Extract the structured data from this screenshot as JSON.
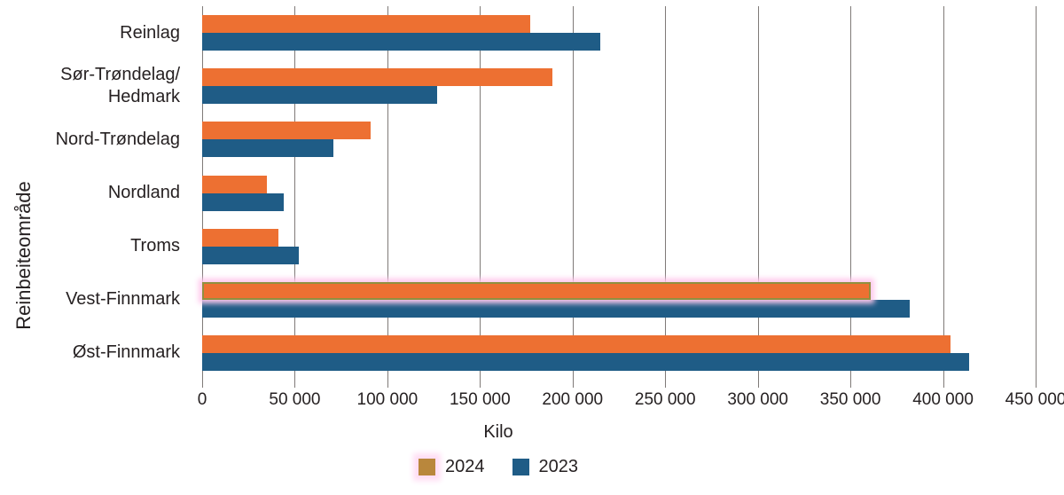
{
  "chart_data": {
    "type": "bar",
    "orientation": "horizontal",
    "title": "",
    "xlabel": "Kilo",
    "ylabel": "Reinbeiteområde",
    "xlim": [
      0,
      450000
    ],
    "grid": "vertical-only",
    "gridline_color": "#7f7a78",
    "x_ticks": [
      0,
      50000,
      100000,
      150000,
      200000,
      250000,
      300000,
      350000,
      400000,
      450000
    ],
    "x_tick_labels": [
      "0",
      "50 000",
      "100 000",
      "150 000",
      "200 000",
      "250 000",
      "300 000",
      "350 000",
      "400 000",
      "450 000"
    ],
    "categories": [
      {
        "id": "reinlag",
        "label_lines": [
          "Reinlag"
        ]
      },
      {
        "id": "sor-trondelag-hedmark",
        "label_lines": [
          "Sør-Trøndelag/",
          "Hedmark"
        ]
      },
      {
        "id": "nord-trondelag",
        "label_lines": [
          "Nord-Trøndelag"
        ]
      },
      {
        "id": "nordland",
        "label_lines": [
          "Nordland"
        ]
      },
      {
        "id": "troms",
        "label_lines": [
          "Troms"
        ]
      },
      {
        "id": "vest-finnmark",
        "label_lines": [
          "Vest-Finnmark"
        ]
      },
      {
        "id": "ost-finnmark",
        "label_lines": [
          "Øst-Finnmark"
        ]
      }
    ],
    "series": [
      {
        "name": "2024",
        "color": "#ed7032",
        "values": [
          177000,
          189000,
          91000,
          35000,
          41000,
          361000,
          404000
        ]
      },
      {
        "name": "2023",
        "color": "#1f5c86",
        "values": [
          215000,
          127000,
          71000,
          44000,
          52000,
          382000,
          414000
        ]
      }
    ],
    "legend_position": "bottom",
    "highlight": {
      "type": "selection-glow",
      "glow_color": "#ffc9ec",
      "outline_color": "#91903f",
      "highlighted_bar": {
        "series": "2024",
        "category": "vest-finnmark"
      },
      "highlighted_legend_swatch": {
        "series": "2024",
        "swatch_color": "#b9873c"
      }
    }
  }
}
